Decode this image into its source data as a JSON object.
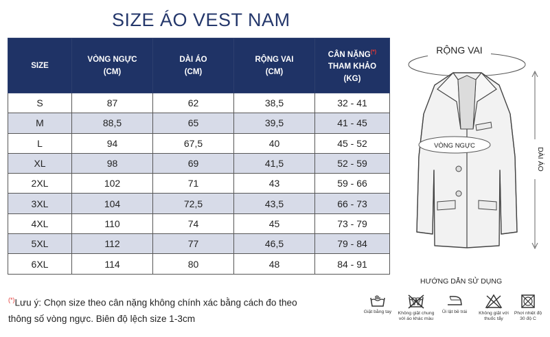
{
  "title": "SIZE ÁO VEST NAM",
  "table": {
    "headers": {
      "size": "SIZE",
      "chest": [
        "VÒNG NGỰC",
        "(CM)"
      ],
      "length": [
        "DÀI ÁO",
        "(CM)"
      ],
      "shoulder": [
        "RỘNG VAI",
        "(CM)"
      ],
      "weight": [
        "CÂN NẶNG",
        "(*)",
        "THAM KHẢO",
        "(KG)"
      ]
    },
    "rows": [
      [
        "S",
        "87",
        "62",
        "38,5",
        "32 - 41"
      ],
      [
        "M",
        "88,5",
        "65",
        "39,5",
        "41 - 45"
      ],
      [
        "L",
        "94",
        "67,5",
        "40",
        "45 - 52"
      ],
      [
        "XL",
        "98",
        "69",
        "41,5",
        "52 - 59"
      ],
      [
        "2XL",
        "102",
        "71",
        "43",
        "59 - 66"
      ],
      [
        "3XL",
        "104",
        "72,5",
        "43,5",
        "66 - 73"
      ],
      [
        "4XL",
        "110",
        "74",
        "45",
        "73 - 79"
      ],
      [
        "5XL",
        "112",
        "77",
        "46,5",
        "79 - 84"
      ],
      [
        "6XL",
        "114",
        "80",
        "48",
        "84 - 91"
      ]
    ]
  },
  "note": {
    "star": "(*)",
    "line1": "Lưu ý: Chọn size theo cân nặng không chính xác bằng cách đo theo",
    "line2": "thông số vòng ngực. Biên độ lệch size 1-3cm"
  },
  "diagram": {
    "shoulder_label": "RỘNG VAI",
    "chest_label": "VÒNG NGỰC",
    "length_label": "DÀI ÁO"
  },
  "care": {
    "title": "HƯỚNG DẪN SỬ DỤNG",
    "items": [
      {
        "icon": "hand-wash-icon",
        "label1": "Giặt bằng tay",
        "label2": ""
      },
      {
        "icon": "no-mix-wash-icon",
        "label1": "Không giặt chung",
        "label2": "với áo khác màu"
      },
      {
        "icon": "iron-inside-icon",
        "label1": "Ủi lật bề trái",
        "label2": ""
      },
      {
        "icon": "no-bleach-icon",
        "label1": "Không giặt với",
        "label2": "thuốc tẩy"
      },
      {
        "icon": "dry-shade-icon",
        "label1": "Phơi nhiệt độ",
        "label2": "30 độ C"
      }
    ]
  },
  "colors": {
    "header_bg": "#1f3366",
    "alt_row": "#d7dbe8",
    "title": "#24376b",
    "accent_red": "#e53935"
  }
}
